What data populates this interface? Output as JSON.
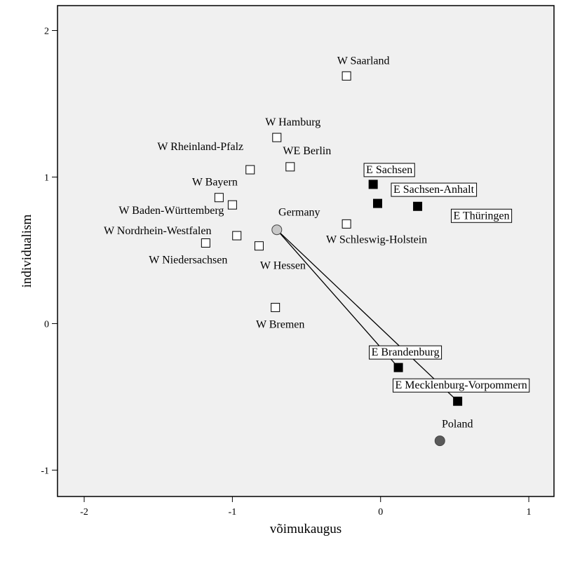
{
  "chart_data": {
    "type": "scatter",
    "title": "",
    "xlabel": "võimukaugus",
    "ylabel": "individualism",
    "xlim": [
      -2.18,
      1.17
    ],
    "ylim": [
      -1.18,
      2.17
    ],
    "xticks": [
      -2,
      -1,
      0,
      1
    ],
    "yticks": [
      -1,
      0,
      1,
      2
    ],
    "grid": false,
    "colors": {
      "background": "#f0f0f0",
      "west": "#ffffff",
      "east": "#000000",
      "germany": "#c8c8c8",
      "poland": "#5a5a5a"
    },
    "points": [
      {
        "label": "W Saarland",
        "x": -0.23,
        "y": 1.69,
        "group": "west"
      },
      {
        "label": "W Hamburg",
        "x": -0.7,
        "y": 1.27,
        "group": "west"
      },
      {
        "label": "W Rheinland-Pfalz",
        "x": -0.88,
        "y": 1.05,
        "group": "west"
      },
      {
        "label": "WE Berlin",
        "x": -0.61,
        "y": 1.07,
        "group": "west"
      },
      {
        "label": "W Bayern",
        "x": -1.09,
        "y": 0.86,
        "group": "west"
      },
      {
        "label": "W Baden-Württemberg",
        "x": -1.0,
        "y": 0.81,
        "group": "west"
      },
      {
        "label": "W Nordrhein-Westfalen",
        "x": -0.97,
        "y": 0.6,
        "group": "west"
      },
      {
        "label": "W Niedersachsen",
        "x": -1.18,
        "y": 0.55,
        "group": "west"
      },
      {
        "label": "W Hessen",
        "x": -0.82,
        "y": 0.53,
        "group": "west"
      },
      {
        "label": "W Bremen",
        "x": -0.71,
        "y": 0.11,
        "group": "west"
      },
      {
        "label": "W Schleswig-Holstein",
        "x": -0.23,
        "y": 0.68,
        "group": "west"
      },
      {
        "label": "Germany",
        "x": -0.7,
        "y": 0.64,
        "group": "germany"
      },
      {
        "label": "E Sachsen",
        "x": -0.05,
        "y": 0.95,
        "group": "east"
      },
      {
        "label": "E Sachsen-Anhalt",
        "x": -0.02,
        "y": 0.82,
        "group": "east"
      },
      {
        "label": "E Thüringen",
        "x": 0.25,
        "y": 0.8,
        "group": "east"
      },
      {
        "label": "E Brandenburg",
        "x": 0.12,
        "y": -0.3,
        "group": "east"
      },
      {
        "label": "E Mecklenburg-Vorpommern",
        "x": 0.52,
        "y": -0.53,
        "group": "east"
      },
      {
        "label": "Poland",
        "x": 0.4,
        "y": -0.8,
        "group": "poland"
      }
    ],
    "connectors": [
      {
        "from": "Germany",
        "to": "E Brandenburg"
      },
      {
        "from": "Germany",
        "to": "E Mecklenburg-Vorpommern"
      }
    ]
  }
}
